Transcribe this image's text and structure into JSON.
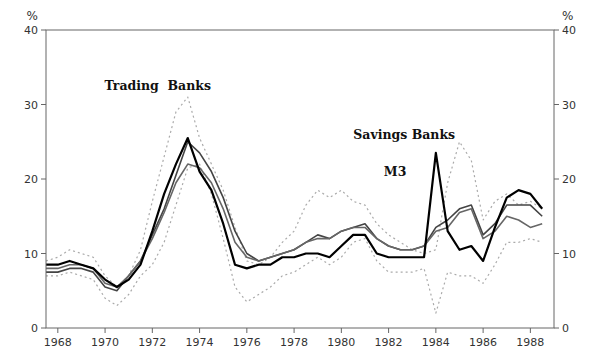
{
  "chart_data": {
    "type": "line",
    "ylabel": "%",
    "y2label": "%",
    "x": [
      1967.5,
      1968.0,
      1968.5,
      1969.0,
      1969.5,
      1970.0,
      1970.5,
      1971.0,
      1971.5,
      1972.0,
      1972.5,
      1973.0,
      1973.5,
      1974.0,
      1974.5,
      1975.0,
      1975.5,
      1976.0,
      1976.5,
      1977.0,
      1977.5,
      1978.0,
      1978.5,
      1979.0,
      1979.5,
      1980.0,
      1980.5,
      1981.0,
      1981.5,
      1982.0,
      1982.5,
      1983.0,
      1983.5,
      1984.0,
      1984.5,
      1985.0,
      1985.5,
      1986.0,
      1986.5,
      1987.0,
      1987.5,
      1988.0,
      1988.5
    ],
    "xlim": [
      1967.5,
      1989.0
    ],
    "xticks": [
      1968,
      1970,
      1972,
      1974,
      1976,
      1978,
      1980,
      1982,
      1984,
      1986,
      1988
    ],
    "ylim": [
      0,
      40
    ],
    "yticks": [
      0,
      10,
      20,
      30,
      40
    ],
    "y2lim": [
      0,
      40
    ],
    "y2ticks": [
      0,
      10,
      20,
      30,
      40
    ],
    "grid": false,
    "series": [
      {
        "color": "#aaaaaa",
        "line_style": "dotted",
        "values": [
          9.0,
          9.5,
          10.5,
          10.0,
          9.5,
          7.0,
          5.5,
          7.0,
          10.5,
          17.0,
          23.0,
          29.0,
          31.0,
          25.5,
          22.0,
          18.5,
          13.5,
          9.0,
          8.5,
          9.5,
          11.5,
          13.0,
          16.5,
          18.5,
          17.5,
          18.5,
          17.0,
          16.5,
          14.0,
          12.5,
          11.5,
          10.5,
          10.0,
          10.5,
          19.5,
          25.0,
          22.5,
          14.5,
          17.0,
          18.0,
          16.5,
          17.0,
          16.0
        ]
      },
      {
        "color": "#aaaaaa",
        "line_style": "dotted",
        "values": [
          7.0,
          7.0,
          7.5,
          7.0,
          6.5,
          4.0,
          3.0,
          4.5,
          7.0,
          8.5,
          11.5,
          16.5,
          21.5,
          22.0,
          18.0,
          12.0,
          5.5,
          3.5,
          4.5,
          5.5,
          7.0,
          7.5,
          8.5,
          9.5,
          8.5,
          9.5,
          11.5,
          12.0,
          9.0,
          7.5,
          7.5,
          7.5,
          8.0,
          2.0,
          7.5,
          7.0,
          7.0,
          6.0,
          8.5,
          11.5,
          11.5,
          12.0,
          11.5
        ]
      },
      {
        "name": "M3",
        "color": "#444444",
        "line_style": "solid",
        "values": [
          7.5,
          7.5,
          8.0,
          8.0,
          7.5,
          5.5,
          5.0,
          7.0,
          9.0,
          12.5,
          16.0,
          20.5,
          25.0,
          23.5,
          21.0,
          17.5,
          13.0,
          10.0,
          9.0,
          9.5,
          10.0,
          10.5,
          11.5,
          12.5,
          12.0,
          13.0,
          13.5,
          14.0,
          12.0,
          11.0,
          10.5,
          10.5,
          11.0,
          13.5,
          14.5,
          16.0,
          16.5,
          12.5,
          14.0,
          16.5,
          16.5,
          16.5,
          15.0
        ]
      },
      {
        "name": "Savings Banks",
        "color": "#666666",
        "line_style": "solid",
        "values": [
          8.0,
          8.0,
          8.5,
          8.5,
          8.0,
          6.0,
          5.5,
          7.0,
          9.0,
          12.0,
          15.5,
          19.5,
          22.0,
          21.5,
          19.5,
          16.0,
          11.5,
          9.5,
          9.0,
          9.5,
          10.0,
          10.5,
          11.5,
          12.0,
          12.0,
          13.0,
          13.5,
          13.5,
          12.0,
          11.0,
          10.5,
          10.5,
          11.0,
          13.0,
          13.5,
          15.5,
          16.0,
          12.0,
          13.0,
          15.0,
          14.5,
          13.5,
          14.0
        ]
      },
      {
        "name": "Trading  Banks",
        "color": "black",
        "line_style": "solid",
        "values": [
          8.5,
          8.5,
          9.0,
          8.5,
          8.0,
          6.5,
          5.5,
          6.5,
          8.5,
          13.0,
          18.0,
          22.0,
          25.5,
          21.0,
          18.5,
          14.0,
          8.5,
          8.0,
          8.5,
          8.5,
          9.5,
          9.5,
          10.0,
          10.0,
          9.5,
          11.0,
          12.5,
          12.5,
          10.0,
          9.5,
          9.5,
          9.5,
          9.5,
          23.5,
          13.0,
          10.5,
          11.0,
          9.0,
          13.5,
          17.5,
          18.5,
          18.0,
          16.0
        ]
      }
    ]
  }
}
